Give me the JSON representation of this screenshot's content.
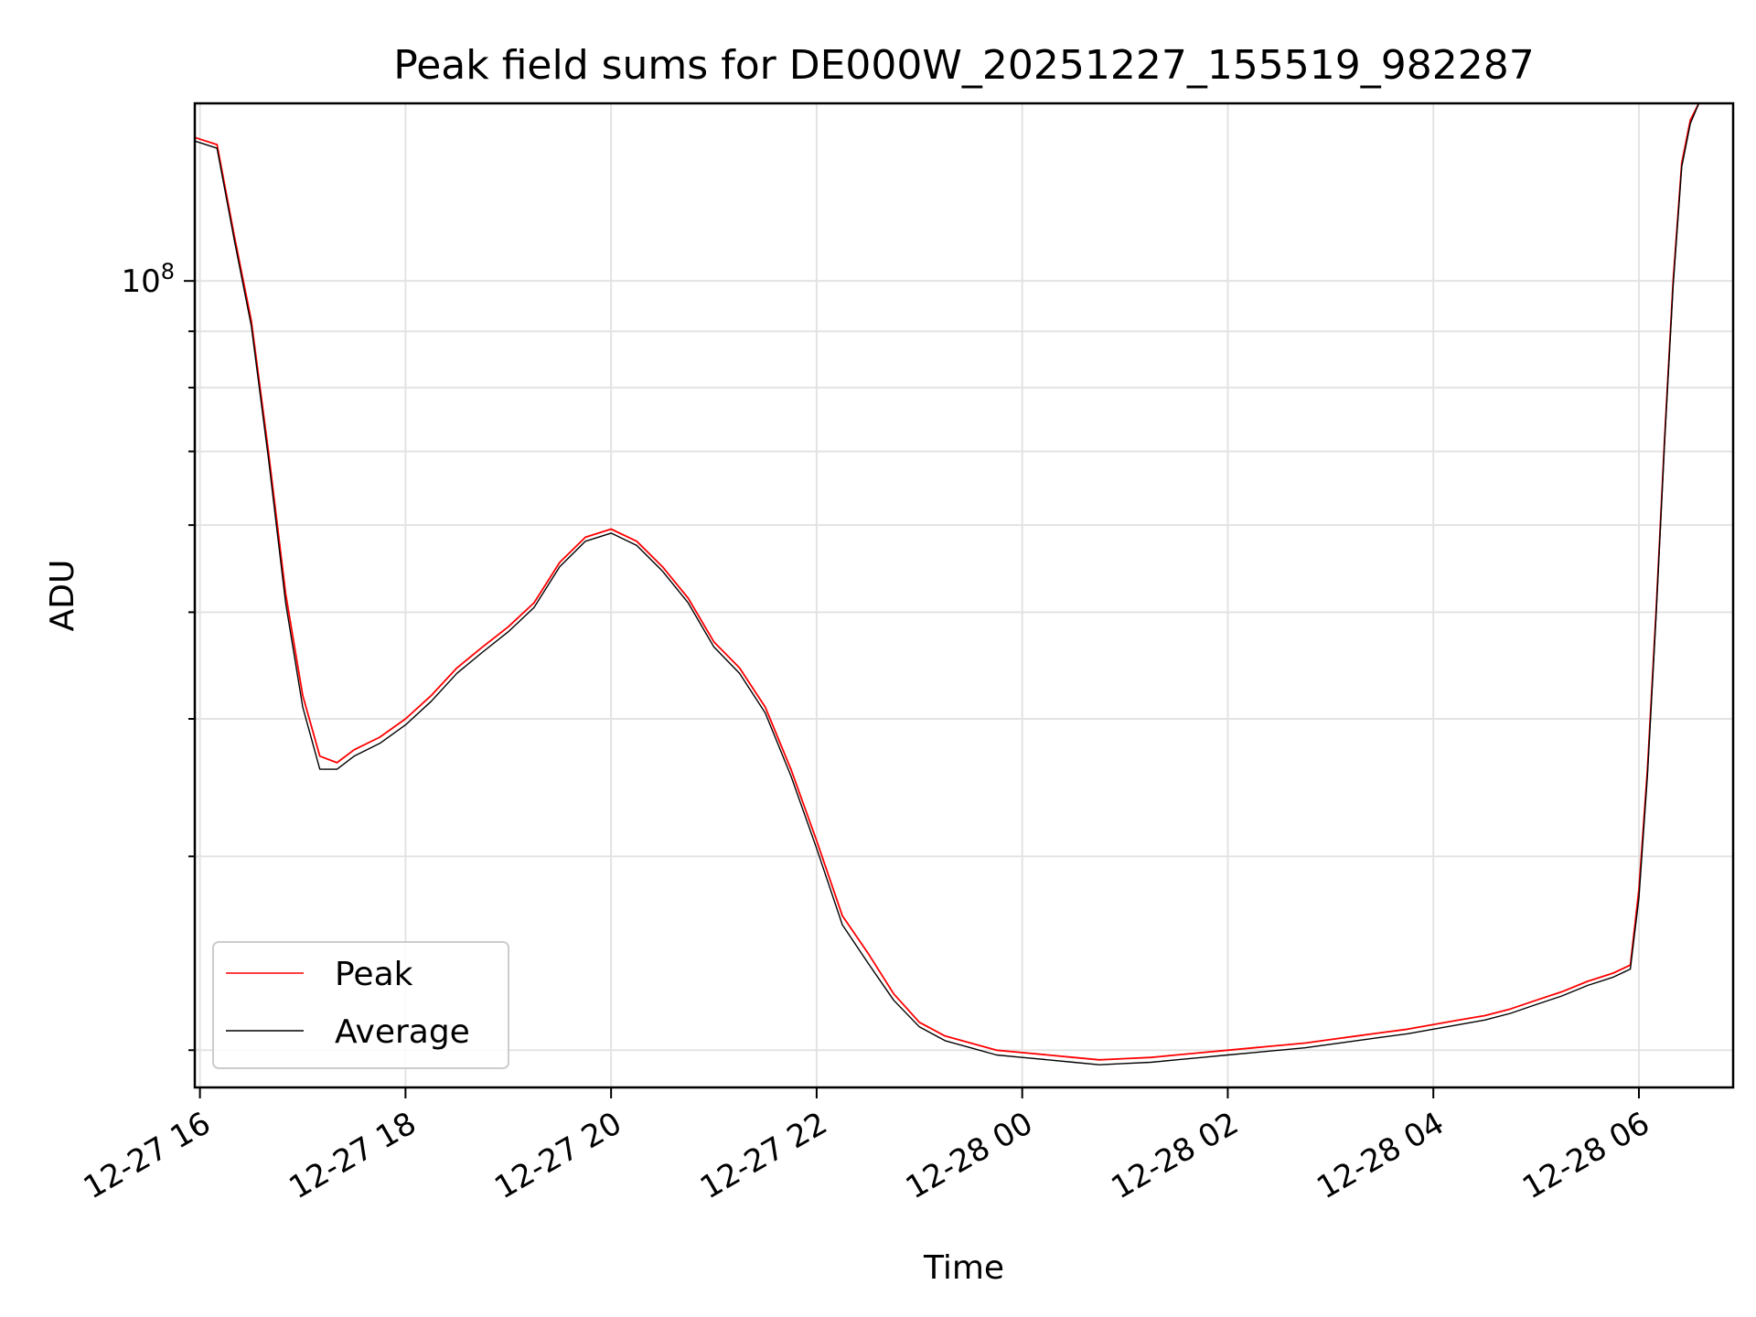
{
  "chart_data": {
    "type": "line",
    "title": "Peak field sums for DE000W_20251227_155519_982287",
    "xlabel": "Time",
    "ylabel": "ADU",
    "yscale": "log",
    "ylim": [
      18500000,
      145000000
    ],
    "xlim": [
      "12-27 15:57",
      "12-28 06:55"
    ],
    "grid": true,
    "legend_position": "lower-left",
    "x_ticks": [
      "12-27 16",
      "12-27 18",
      "12-27 20",
      "12-27 22",
      "12-28 00",
      "12-28 02",
      "12-28 04",
      "12-28 06"
    ],
    "y_tick_labels": [
      {
        "value": 100000000,
        "label": "10",
        "exponent": "8"
      }
    ],
    "x": [
      "12-27 15:57",
      "12-27 16:10",
      "12-27 16:20",
      "12-27 16:30",
      "12-27 16:40",
      "12-27 16:50",
      "12-27 17:00",
      "12-27 17:10",
      "12-27 17:20",
      "12-27 17:30",
      "12-27 17:45",
      "12-27 18:00",
      "12-27 18:15",
      "12-27 18:30",
      "12-27 18:45",
      "12-27 19:00",
      "12-27 19:15",
      "12-27 19:30",
      "12-27 19:45",
      "12-27 20:00",
      "12-27 20:15",
      "12-27 20:30",
      "12-27 20:45",
      "12-27 21:00",
      "12-27 21:15",
      "12-27 21:30",
      "12-27 21:45",
      "12-27 22:00",
      "12-27 22:15",
      "12-27 22:30",
      "12-27 22:45",
      "12-27 23:00",
      "12-27 23:15",
      "12-27 23:30",
      "12-27 23:45",
      "12-28 00:00",
      "12-28 00:15",
      "12-28 00:30",
      "12-28 00:45",
      "12-28 01:00",
      "12-28 01:15",
      "12-28 01:30",
      "12-28 01:45",
      "12-28 02:00",
      "12-28 02:15",
      "12-28 02:30",
      "12-28 02:45",
      "12-28 03:00",
      "12-28 03:15",
      "12-28 03:30",
      "12-28 03:45",
      "12-28 04:00",
      "12-28 04:15",
      "12-28 04:30",
      "12-28 04:45",
      "12-28 05:00",
      "12-28 05:15",
      "12-28 05:30",
      "12-28 05:45",
      "12-28 05:55",
      "12-28 06:00",
      "12-28 06:05",
      "12-28 06:10",
      "12-28 06:15",
      "12-28 06:20",
      "12-28 06:25",
      "12-28 06:30",
      "12-28 06:35"
    ],
    "series": [
      {
        "name": "Peak",
        "color": "#ff0000",
        "values": [
          135000000,
          133000000,
          110000000,
          92000000,
          70000000,
          52000000,
          42000000,
          37000000,
          36500000,
          37500000,
          38500000,
          40000000,
          42000000,
          44500000,
          46500000,
          48500000,
          51000000,
          55500000,
          58500000,
          59500000,
          58000000,
          55000000,
          51500000,
          47000000,
          44500000,
          41000000,
          36000000,
          31000000,
          26500000,
          24500000,
          22500000,
          21200000,
          20600000,
          20300000,
          20000000,
          19900000,
          19800000,
          19700000,
          19600000,
          19650000,
          19700000,
          19800000,
          19900000,
          20000000,
          20100000,
          20200000,
          20300000,
          20450000,
          20600000,
          20750000,
          20900000,
          21100000,
          21300000,
          21500000,
          21800000,
          22200000,
          22600000,
          23100000,
          23500000,
          23900000,
          28000000,
          36000000,
          50000000,
          72000000,
          100000000,
          128000000,
          140000000,
          145000000
        ]
      },
      {
        "name": "Average",
        "color": "#000000",
        "values": [
          134000000,
          132000000,
          109000000,
          91000000,
          69000000,
          51000000,
          41000000,
          36000000,
          36000000,
          37000000,
          38000000,
          39500000,
          41500000,
          44000000,
          46000000,
          48000000,
          50500000,
          55000000,
          58000000,
          59000000,
          57500000,
          54500000,
          51000000,
          46500000,
          44000000,
          40500000,
          35500000,
          30500000,
          26000000,
          24000000,
          22200000,
          21000000,
          20400000,
          20100000,
          19800000,
          19700000,
          19600000,
          19500000,
          19400000,
          19450000,
          19500000,
          19600000,
          19700000,
          19800000,
          19900000,
          20000000,
          20100000,
          20250000,
          20400000,
          20550000,
          20700000,
          20900000,
          21100000,
          21300000,
          21600000,
          22000000,
          22400000,
          22900000,
          23300000,
          23700000,
          27500000,
          35500000,
          49500000,
          71500000,
          99000000,
          127000000,
          139000000,
          145000000
        ]
      }
    ]
  }
}
